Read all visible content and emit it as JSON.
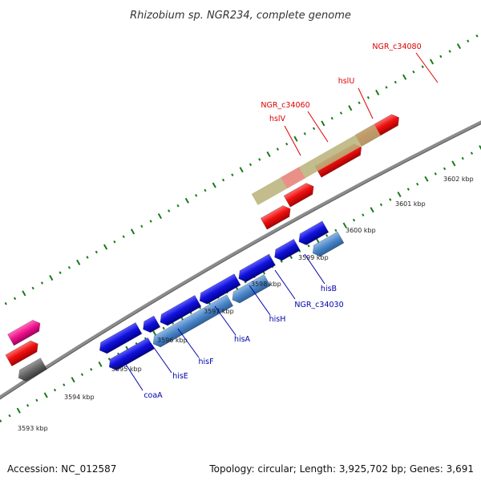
{
  "title": "Rhizobium sp. NGR234, complete genome",
  "footer": {
    "accession": "Accession: NC_012587",
    "stats": "Topology: circular; Length: 3,925,702 bp; Genes: 3,691"
  },
  "colors": {
    "background": "#ffffff",
    "backbone": "#8c8c8c",
    "tick_mark": "#1a7a1a",
    "forward_gene": "#ee1111",
    "reverse_gene": "#1111dd",
    "reverse_gene_light": "#4a86c8",
    "selection_band": "#b8b078",
    "pink_gene": "#ee1188",
    "gray_gene": "#666666",
    "forward_label": "#dd0000",
    "reverse_label": "#0000aa"
  },
  "ticks": [
    "3593 kbp",
    "3594 kbp",
    "3595 kbp",
    "3596 kbp",
    "3597 kbp",
    "3598 kbp",
    "3599 kbp",
    "3600 kbp",
    "3601 kbp",
    "3602 kbp"
  ],
  "genes": {
    "forward": [
      "NGR_c34080",
      "hslU",
      "NGR_c34060",
      "hslV"
    ],
    "reverse": [
      "coaA",
      "hisE",
      "hisF",
      "hisA",
      "hisH",
      "NGR_c34030",
      "hisB"
    ]
  }
}
